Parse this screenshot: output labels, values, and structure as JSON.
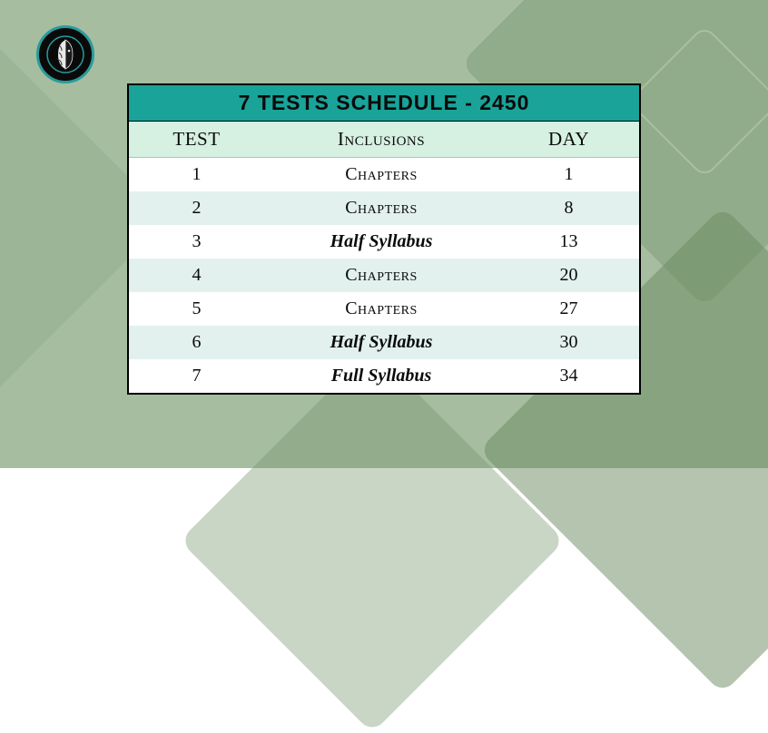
{
  "title": "7  TESTS SCHEDULE - 2450",
  "headers": {
    "test": "TEST",
    "inclusions": "Inclusions",
    "day": "DAY"
  },
  "rows": [
    {
      "test": "1",
      "inclusions": "Chapters",
      "style": "chapters",
      "day": "1"
    },
    {
      "test": "2",
      "inclusions": "Chapters",
      "style": "chapters",
      "day": "8"
    },
    {
      "test": "3",
      "inclusions": "Half Syllabus",
      "style": "emph",
      "day": "13"
    },
    {
      "test": "4",
      "inclusions": "Chapters",
      "style": "chapters",
      "day": "20"
    },
    {
      "test": "5",
      "inclusions": "Chapters",
      "style": "chapters",
      "day": "27"
    },
    {
      "test": "6",
      "inclusions": "Half Syllabus",
      "style": "emph",
      "day": "30"
    },
    {
      "test": "7",
      "inclusions": "Full Syllabus",
      "style": "emph",
      "day": "34"
    }
  ],
  "colors": {
    "background": "#a6bda0",
    "title_bg": "#1aa398",
    "header_bg": "#d6f0e2",
    "row_even_bg": "#e2f1ed",
    "row_odd_bg": "#ffffff",
    "border": "#000000"
  },
  "fontsize": {
    "title": 23,
    "header": 21,
    "body": 20
  },
  "col_widths": {
    "test": 150,
    "inclusions": 260,
    "day": 156
  }
}
